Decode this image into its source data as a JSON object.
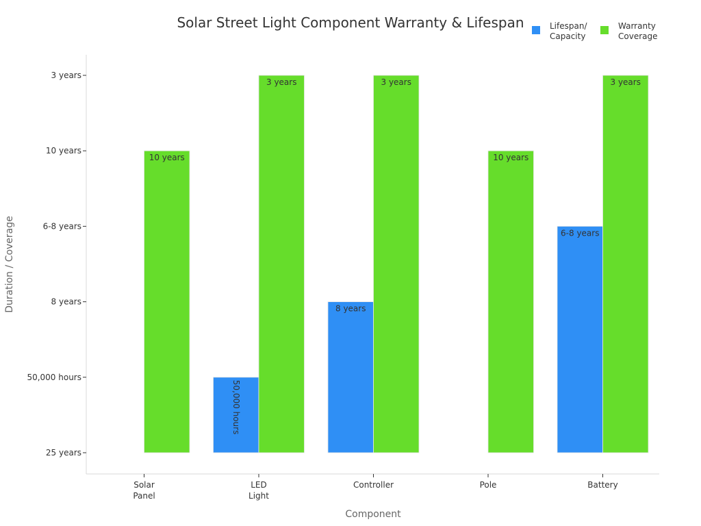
{
  "chart_data": {
    "type": "bar",
    "title": "Solar Street Light Component Warranty & Lifespan",
    "xlabel": "Component",
    "ylabel": "Duration / Coverage",
    "categories": [
      [
        "Solar",
        "Panel"
      ],
      [
        "LED",
        "Light"
      ],
      [
        "Controller"
      ],
      [
        "Pole"
      ],
      [
        "Battery"
      ]
    ],
    "y_ticks": [
      "25 years",
      "50,000 hours",
      "8 years",
      "6-8 years",
      "10 years",
      "3 years"
    ],
    "series": [
      {
        "name": "Lifespan/ Capacity",
        "legend_lines": [
          "Lifespan/",
          "Capacity"
        ],
        "color": "#2f8ff5",
        "values": [
          "25 years",
          "50,000 hours",
          "8 years",
          "25 years",
          "6-8 years"
        ],
        "labels": [
          "",
          "50,000 hours",
          "8 years",
          "",
          "6-8 years"
        ]
      },
      {
        "name": "Warranty Coverage",
        "legend_lines": [
          "Warranty",
          "Coverage"
        ],
        "color": "#66dd2b",
        "values": [
          "10 years",
          "3 years",
          "3 years",
          "10 years",
          "3 years"
        ],
        "labels": [
          "10 years",
          "3 years",
          "3 years",
          "10 years",
          "3 years"
        ]
      }
    ],
    "legend_position": "top-right",
    "grid": false
  }
}
